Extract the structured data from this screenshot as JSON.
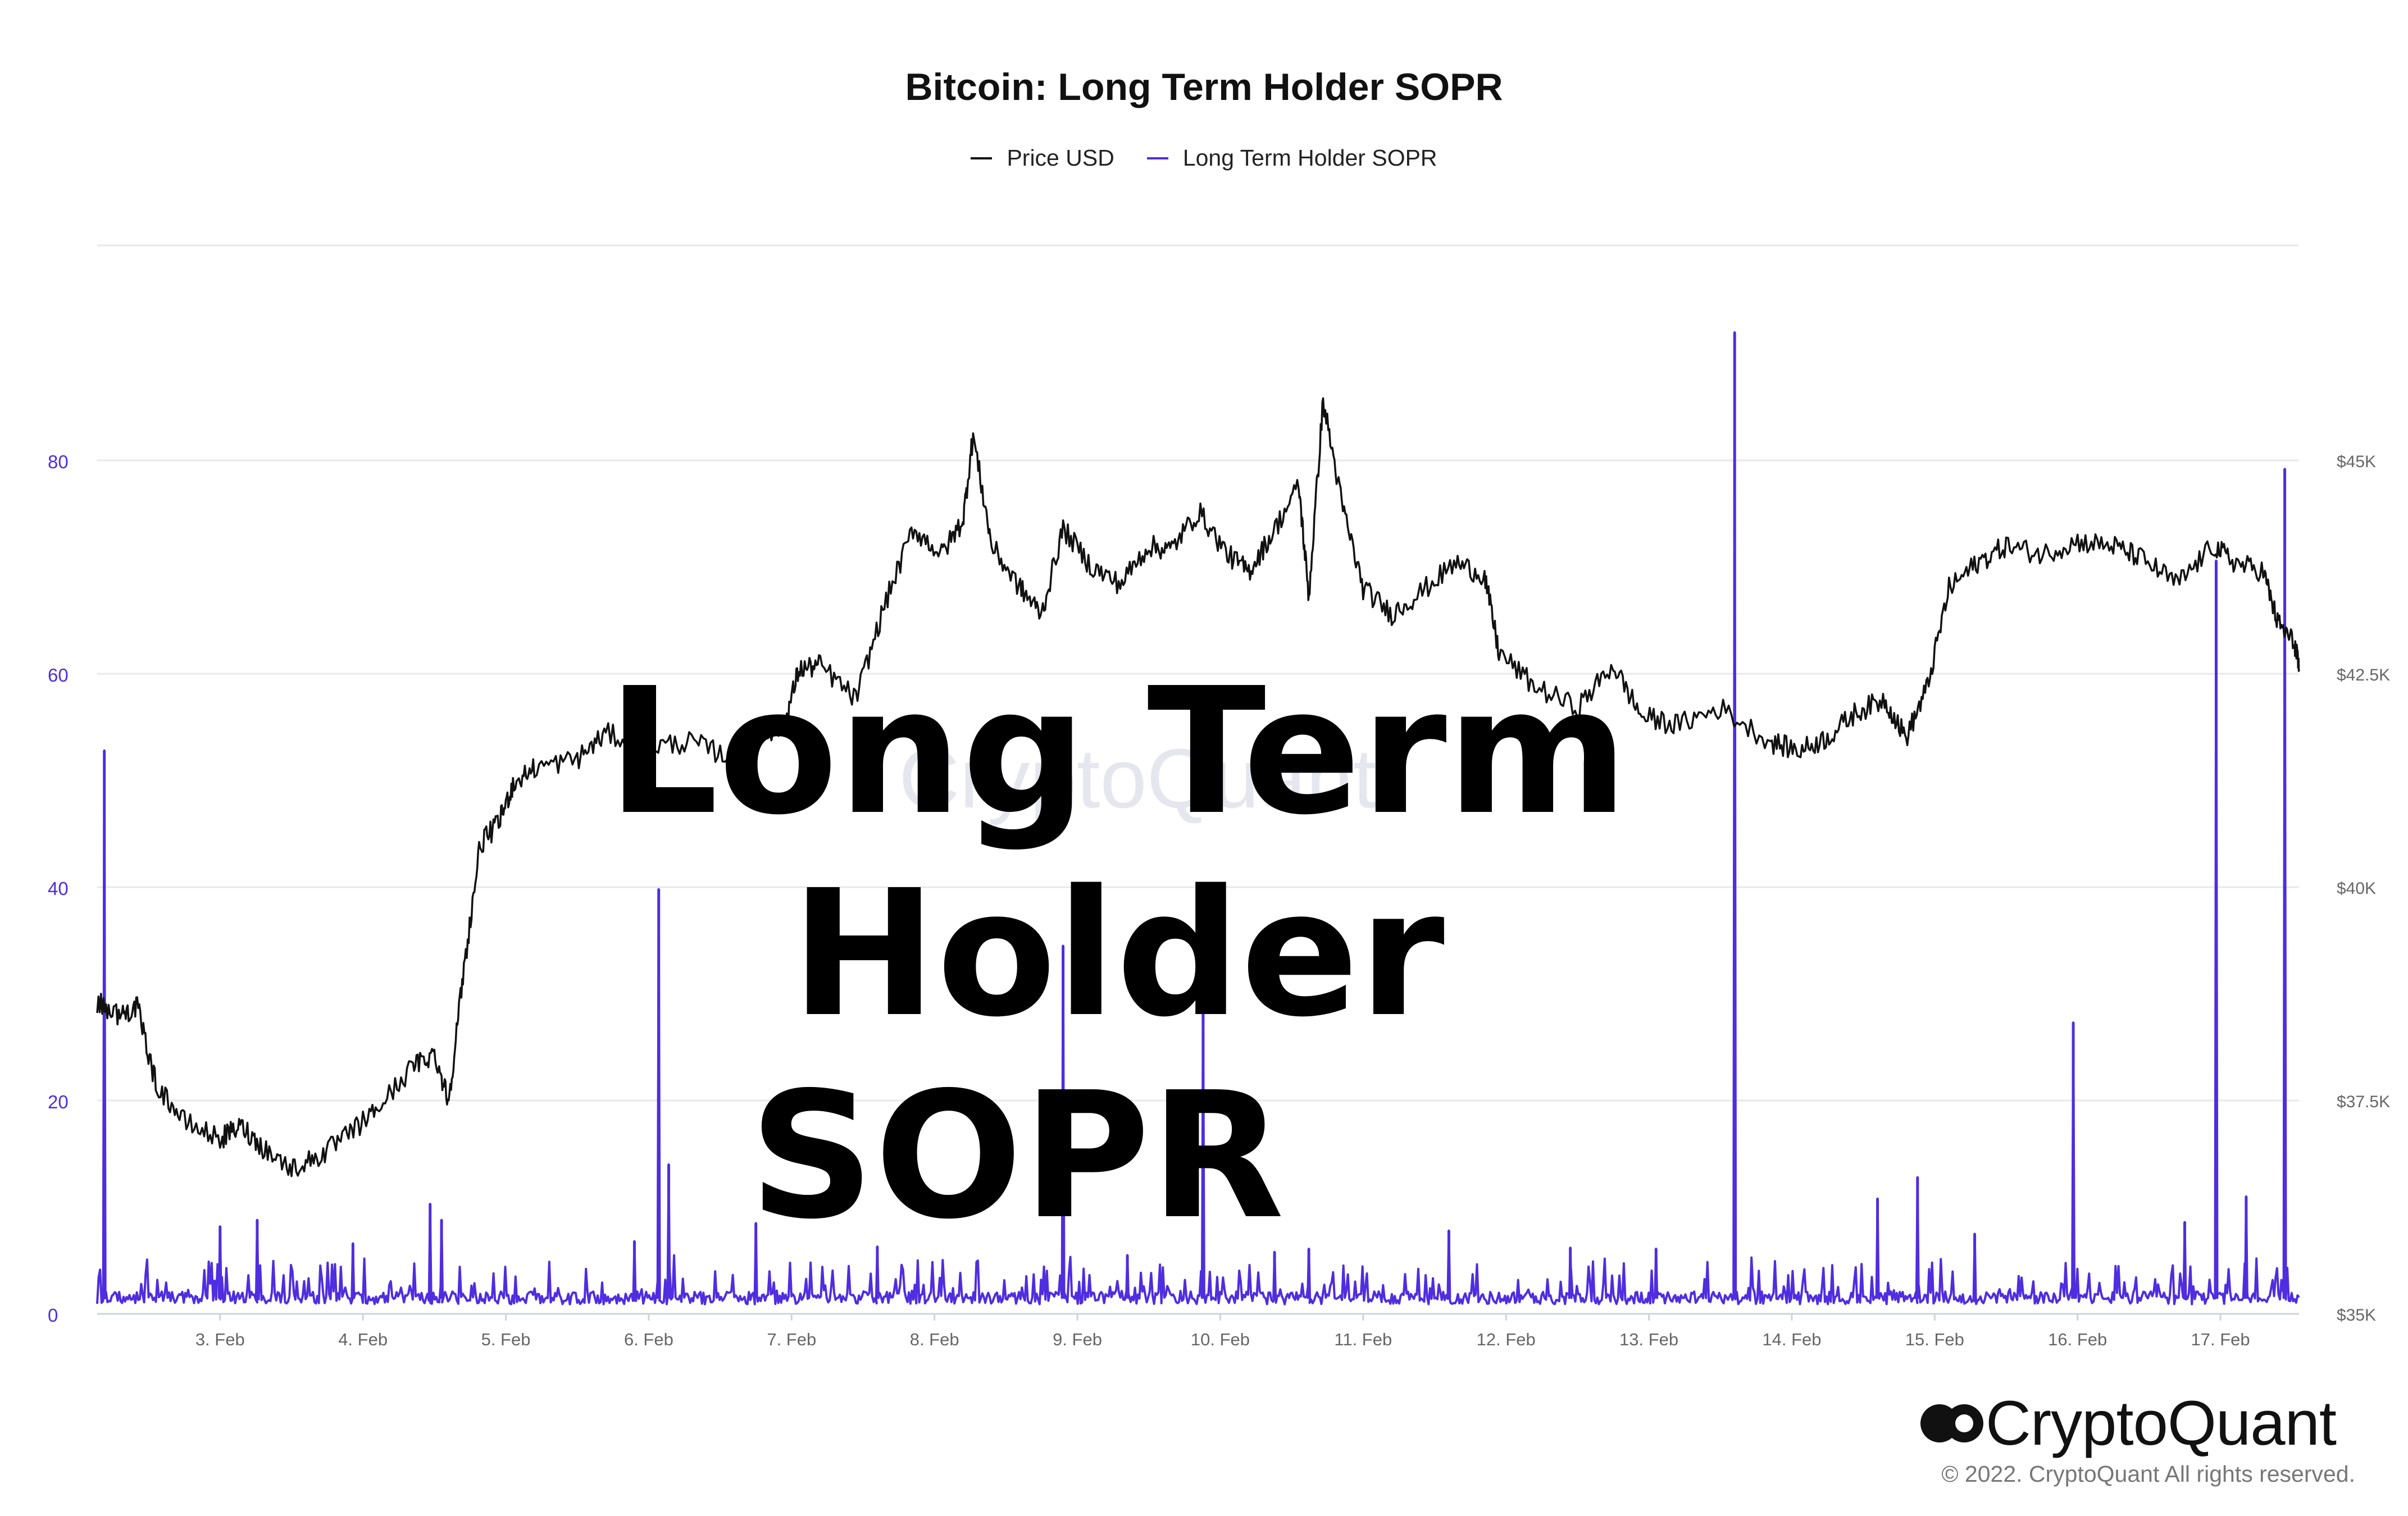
{
  "chart_data": {
    "type": "line",
    "title": "Bitcoin: Long Term Holder SOPR",
    "legend": [
      {
        "label": "Price USD",
        "color": "#111111"
      },
      {
        "label": "Long Term Holder SOPR",
        "color": "#4f2de0"
      }
    ],
    "x_ticks": [
      "3. Feb",
      "4. Feb",
      "5. Feb",
      "6. Feb",
      "7. Feb",
      "8. Feb",
      "9. Feb",
      "10. Feb",
      "11. Feb",
      "12. Feb",
      "13. Feb",
      "14. Feb",
      "15. Feb",
      "16. Feb",
      "17. Feb"
    ],
    "x_range_days": [
      2.14,
      17.55
    ],
    "left_axis": {
      "ticks": [
        "0",
        "20",
        "40",
        "60",
        "80"
      ],
      "range": [
        0,
        80
      ],
      "color": "#4f2de0"
    },
    "right_axis": {
      "ticks": [
        "$35K",
        "$37.5K",
        "$40K",
        "$42.5K",
        "$45K"
      ],
      "range": [
        35000,
        45000
      ]
    },
    "grid": true,
    "legend_position": "top-center",
    "series": [
      {
        "name": "Price USD",
        "color": "#111111",
        "points": [
          [
            2.14,
            38650
          ],
          [
            2.3,
            38500
          ],
          [
            2.42,
            38600
          ],
          [
            2.55,
            37700
          ],
          [
            2.75,
            37250
          ],
          [
            3.0,
            37050
          ],
          [
            3.15,
            37200
          ],
          [
            3.3,
            36950
          ],
          [
            3.5,
            36700
          ],
          [
            3.7,
            36850
          ],
          [
            3.9,
            37100
          ],
          [
            4.1,
            37400
          ],
          [
            4.35,
            37900
          ],
          [
            4.5,
            38050
          ],
          [
            4.6,
            37500
          ],
          [
            4.7,
            38950
          ],
          [
            4.82,
            40500
          ],
          [
            4.95,
            40750
          ],
          [
            5.05,
            41200
          ],
          [
            5.2,
            41400
          ],
          [
            5.5,
            41500
          ],
          [
            5.7,
            41800
          ],
          [
            6.0,
            41650
          ],
          [
            6.3,
            41700
          ],
          [
            6.6,
            41500
          ],
          [
            6.8,
            41800
          ],
          [
            6.95,
            41900
          ],
          [
            7.05,
            42550
          ],
          [
            7.2,
            42600
          ],
          [
            7.45,
            42200
          ],
          [
            7.65,
            43300
          ],
          [
            7.85,
            44200
          ],
          [
            8.05,
            43900
          ],
          [
            8.2,
            44300
          ],
          [
            8.27,
            45300
          ],
          [
            8.4,
            44000
          ],
          [
            8.6,
            43500
          ],
          [
            8.75,
            43200
          ],
          [
            8.9,
            44200
          ],
          [
            9.1,
            43750
          ],
          [
            9.3,
            43550
          ],
          [
            9.5,
            44000
          ],
          [
            9.65,
            43950
          ],
          [
            9.85,
            44400
          ],
          [
            10.05,
            43900
          ],
          [
            10.2,
            43700
          ],
          [
            10.35,
            44100
          ],
          [
            10.55,
            44700
          ],
          [
            10.62,
            43400
          ],
          [
            10.72,
            45700
          ],
          [
            10.85,
            44500
          ],
          [
            11.0,
            43500
          ],
          [
            11.2,
            43200
          ],
          [
            11.4,
            43450
          ],
          [
            11.65,
            43800
          ],
          [
            11.85,
            43650
          ],
          [
            11.95,
            42750
          ],
          [
            12.2,
            42350
          ],
          [
            12.5,
            42100
          ],
          [
            12.75,
            42600
          ],
          [
            12.95,
            42000
          ],
          [
            13.2,
            41900
          ],
          [
            13.5,
            42100
          ],
          [
            13.85,
            41700
          ],
          [
            14.05,
            41600
          ],
          [
            14.25,
            41750
          ],
          [
            14.45,
            42050
          ],
          [
            14.65,
            42200
          ],
          [
            14.8,
            41750
          ],
          [
            14.95,
            42350
          ],
          [
            15.1,
            43500
          ],
          [
            15.3,
            43800
          ],
          [
            15.5,
            44000
          ],
          [
            15.75,
            43900
          ],
          [
            16.0,
            44050
          ],
          [
            16.25,
            44000
          ],
          [
            16.45,
            43850
          ],
          [
            16.7,
            43550
          ],
          [
            16.95,
            44000
          ],
          [
            17.1,
            43800
          ],
          [
            17.3,
            43700
          ],
          [
            17.4,
            43100
          ],
          [
            17.52,
            42850
          ],
          [
            17.55,
            42550
          ]
        ]
      },
      {
        "name": "Long Term Holder SOPR",
        "color": "#4f2de0",
        "baseline": 1.5,
        "spikes": [
          [
            2.19,
            52.8
          ],
          [
            3.0,
            8.2
          ],
          [
            3.26,
            8.8
          ],
          [
            3.93,
            6.6
          ],
          [
            4.47,
            10.3
          ],
          [
            4.55,
            8.8
          ],
          [
            5.9,
            6.8
          ],
          [
            6.07,
            39.8
          ],
          [
            6.14,
            14.0
          ],
          [
            6.75,
            8.5
          ],
          [
            7.6,
            6.3
          ],
          [
            8.9,
            34.5
          ],
          [
            9.35,
            5.5
          ],
          [
            9.88,
            30.0
          ],
          [
            10.38,
            5.8
          ],
          [
            10.62,
            6.1
          ],
          [
            11.6,
            7.8
          ],
          [
            12.45,
            6.2
          ],
          [
            13.05,
            6.1
          ],
          [
            13.6,
            92.0
          ],
          [
            14.6,
            10.8
          ],
          [
            14.88,
            12.8
          ],
          [
            15.28,
            7.5
          ],
          [
            15.97,
            27.3
          ],
          [
            16.75,
            8.6
          ],
          [
            16.97,
            70.6
          ],
          [
            17.18,
            11.0
          ],
          [
            17.45,
            79.2
          ]
        ]
      }
    ]
  },
  "overlay_title": {
    "line1": "Long Term Holder",
    "line2": "SOPR"
  },
  "watermark": "CryptoQuant",
  "brand": {
    "name": "CryptoQuant",
    "copyright": "© 2022. CryptoQuant All rights reserved."
  }
}
